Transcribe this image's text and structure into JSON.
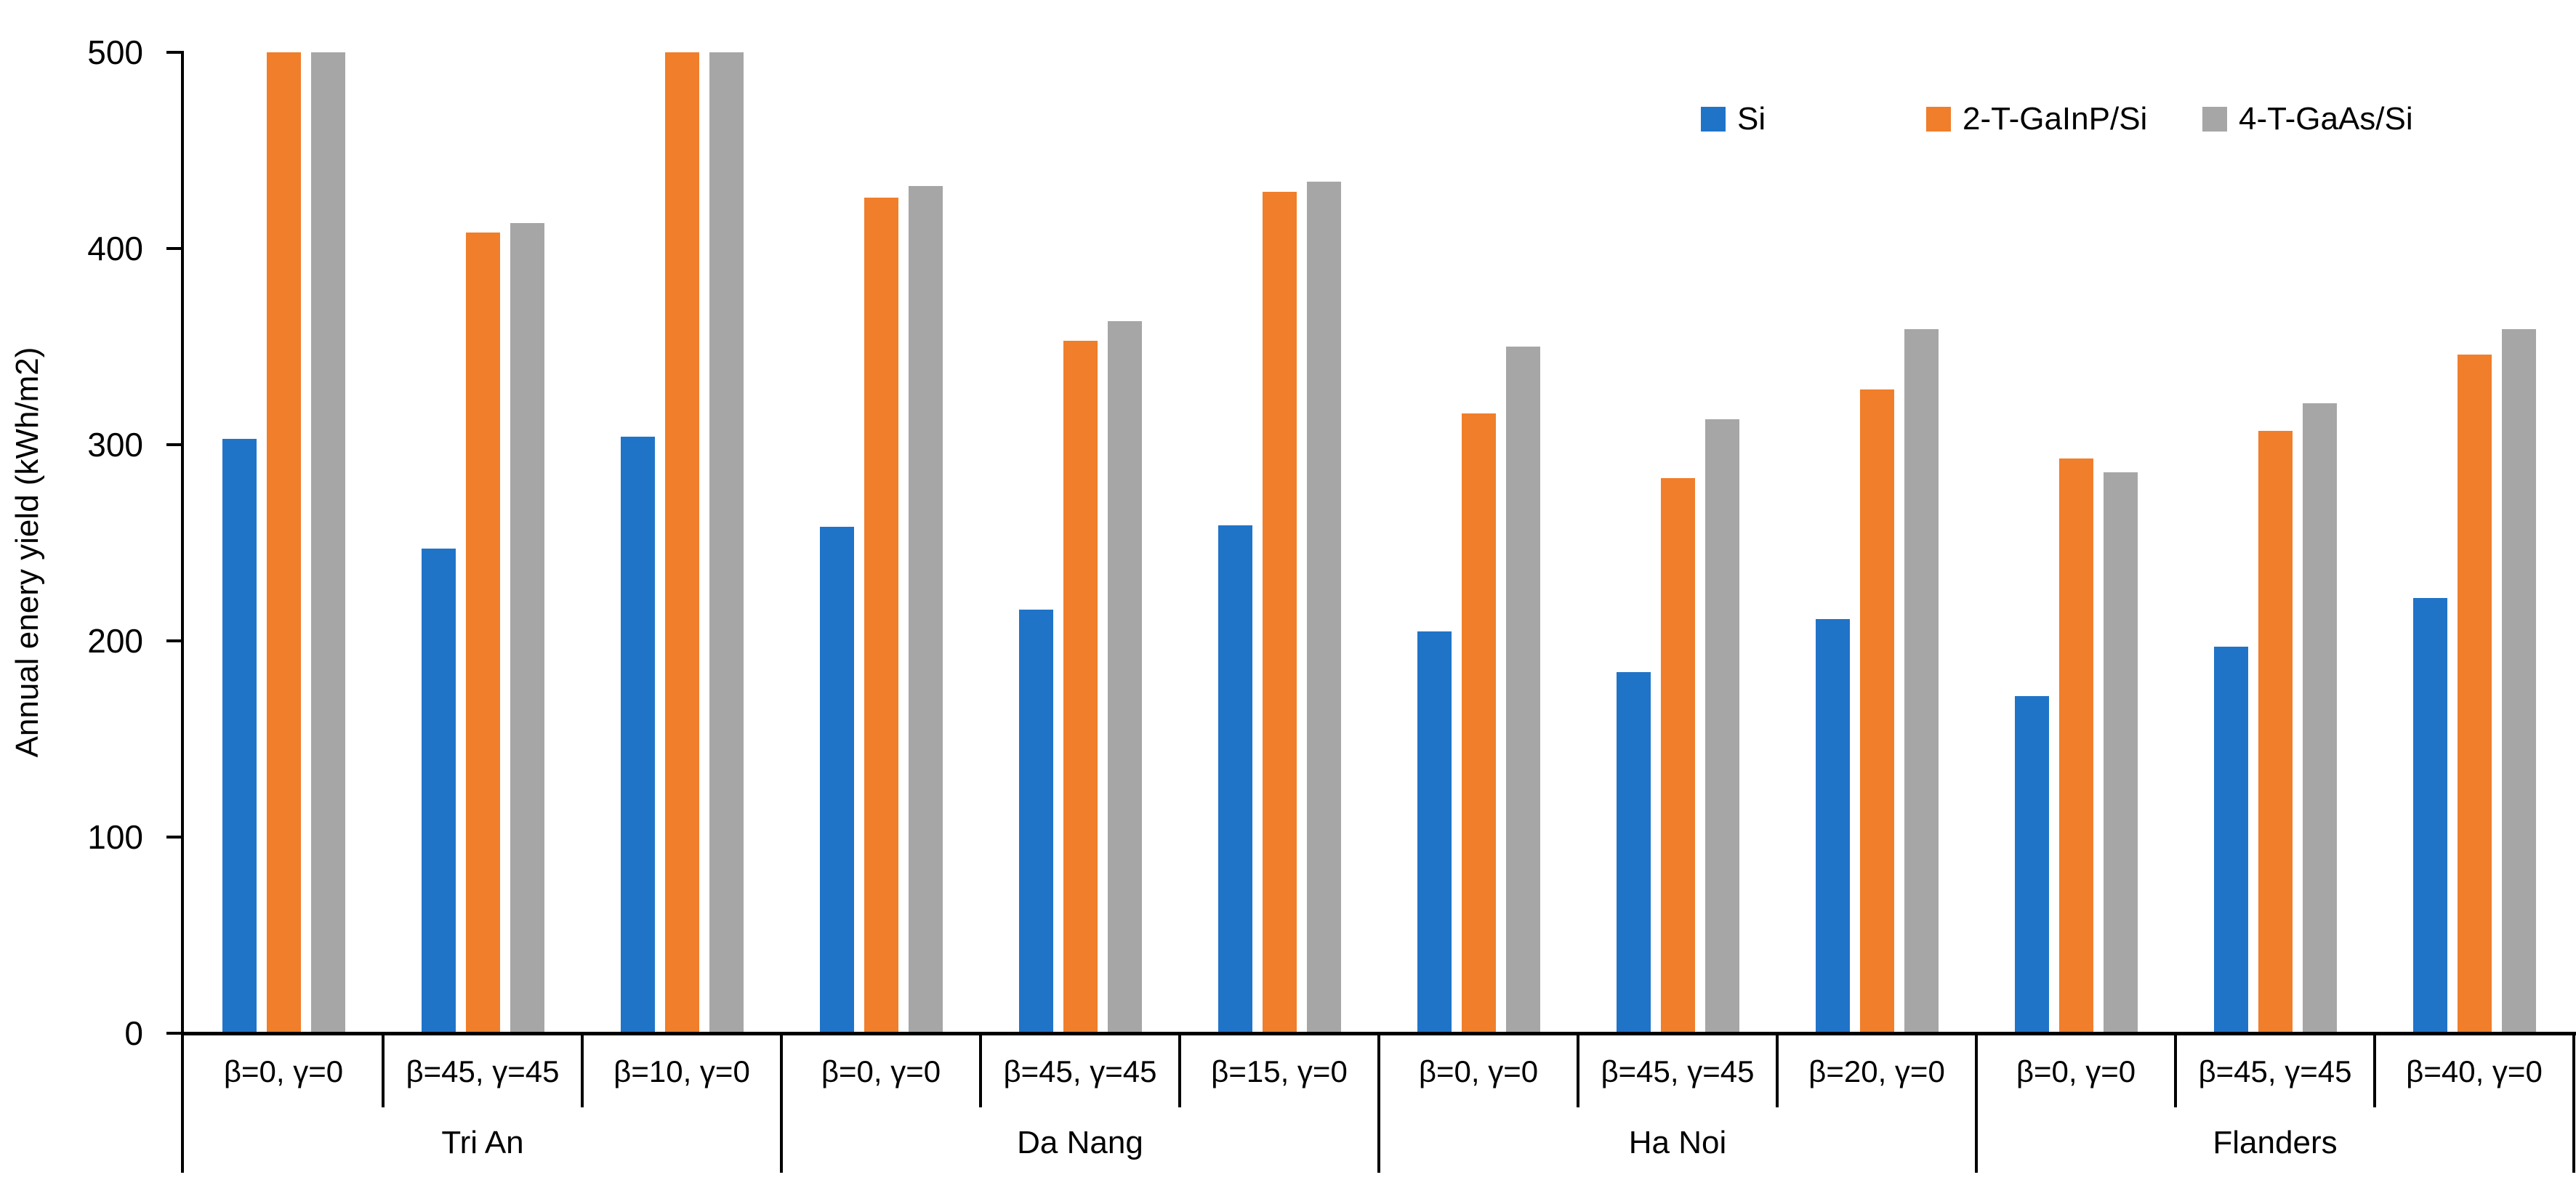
{
  "chart_data": {
    "type": "bar",
    "title": "",
    "xlabel": "",
    "ylabel": "Annual enery yield (kWh/m2)",
    "ylim": [
      0,
      500
    ],
    "yticks": [
      0,
      100,
      200,
      300,
      400,
      500
    ],
    "ytick_labels": [
      "0",
      "100",
      "200",
      "300",
      "400",
      "500"
    ],
    "grid": false,
    "legend_position": "top-right",
    "axis_color": "#000000",
    "groups": [
      "Tri An",
      "Da Nang",
      "Ha Noi",
      "Flanders"
    ],
    "categories": [
      "β=0, γ=0",
      "β=45, γ=45",
      "β=10, γ=0",
      "β=0, γ=0",
      "β=45, γ=45",
      "β=15, γ=0",
      "β=0, γ=0",
      "β=45, γ=45",
      "β=20, γ=0",
      "β=0, γ=0",
      "β=45, γ=45",
      "β=40, γ=0"
    ],
    "series": [
      {
        "name": "Si",
        "color": "#2074C8",
        "values": [
          303,
          247,
          304,
          258,
          216,
          259,
          205,
          184,
          211,
          172,
          197,
          222
        ]
      },
      {
        "name": "2-T-GaInP/Si",
        "color": "#F07E2B",
        "values": [
          500,
          408,
          500,
          426,
          353,
          429,
          316,
          283,
          328,
          293,
          307,
          346
        ]
      },
      {
        "name": "4-T-GaAs/Si",
        "color": "#A6A6A6",
        "values": [
          500,
          413,
          500,
          432,
          363,
          434,
          350,
          313,
          359,
          286,
          321,
          359
        ]
      }
    ]
  }
}
